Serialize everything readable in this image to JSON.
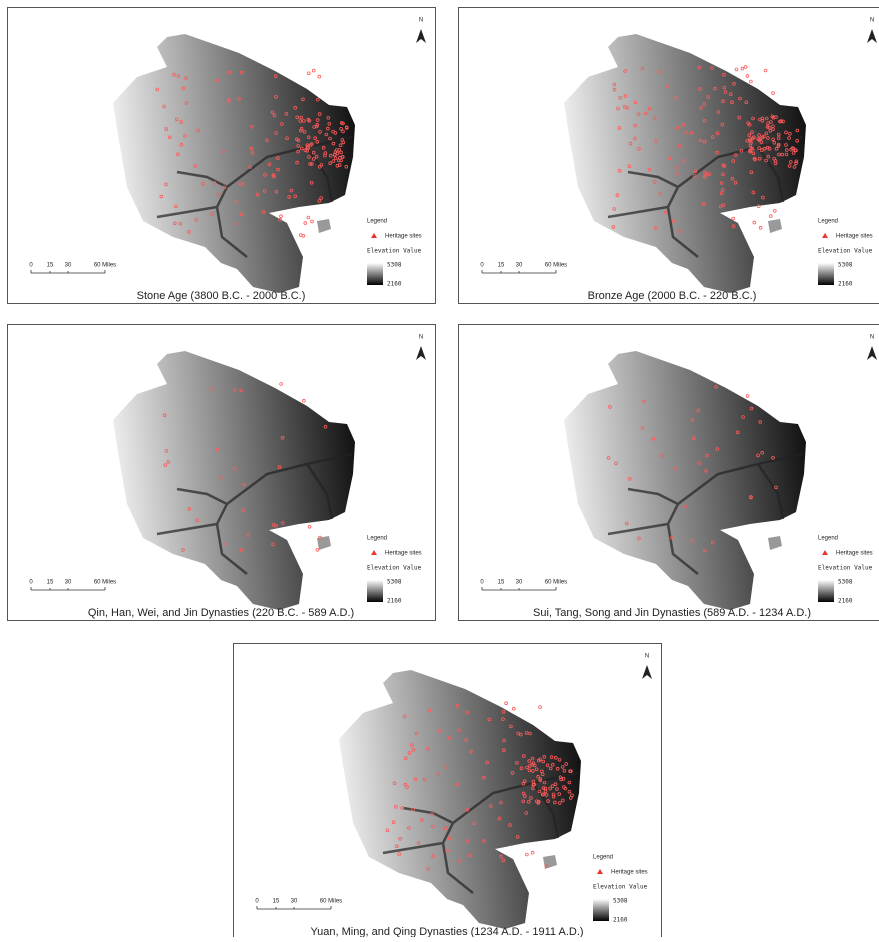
{
  "north": "N",
  "legend": {
    "title": "Legend",
    "sites": "Heritage sites",
    "elevation": "Elevation Value",
    "high": "5308",
    "low": "2160"
  },
  "scale_bar": {
    "labels": [
      "0",
      "15",
      "30",
      "60 Miles"
    ]
  },
  "panels": [
    {
      "caption": "Stone Age (3800 B.C. - 2000 B.C.)"
    },
    {
      "caption": "Bronze Age (2000 B.C. - 220 B.C.)"
    },
    {
      "caption": "Qin, Han, Wei, and Jin Dynasties (220 B.C. - 589 A.D.)"
    },
    {
      "caption": "Sui, Tang, Song and Jin Dynasties (589 A.D. - 1234 A.D.)"
    },
    {
      "caption": "Yuan, Ming, and Qing Dynasties (1234 A.D. - 1911 A.D.)"
    }
  ]
}
